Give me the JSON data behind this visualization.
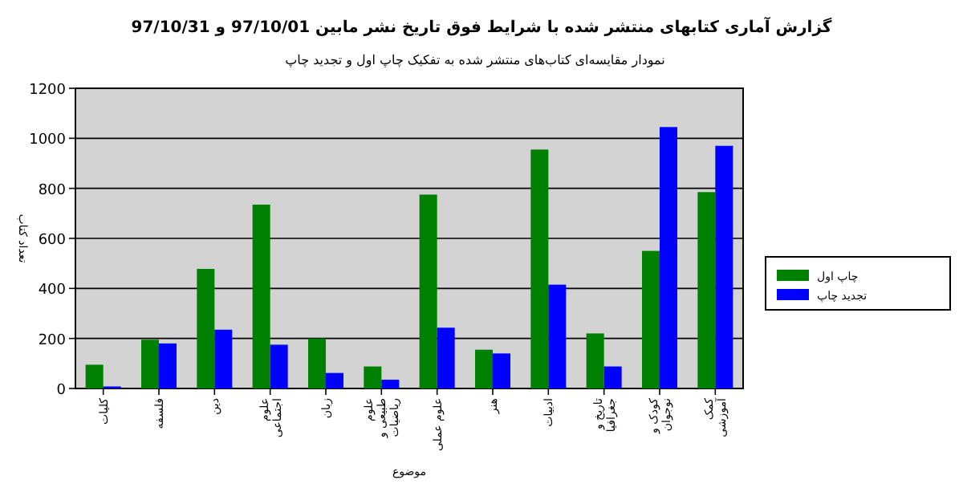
{
  "chart_data": {
    "type": "bar",
    "title": "گزارش آماری کتابهای منتشر شده با شرایط فوق تاریخ نشر مابین 97/10/01 و 97/10/31",
    "subtitle": "نمودار مقایسه‌ای کتاب‌های منتشر شده به تفکیک چاپ اول و تجدید چاپ",
    "xlabel": "موضوع",
    "ylabel": "تعداد کتاب",
    "categories": [
      "کلیات",
      "فلسفه",
      "دین",
      "علوم اجتماعی",
      "زبان",
      "علوم طبیعی و ریاضیات",
      "علوم عملی",
      "هنر",
      "ادبیات",
      "تاریخ و جغرافیا",
      "کودک و نوجوان",
      "کمک آموزشی"
    ],
    "series": [
      {
        "name": "چاپ اول",
        "color": "#008000",
        "values": [
          95,
          195,
          478,
          735,
          200,
          88,
          775,
          155,
          955,
          220,
          550,
          785
        ]
      },
      {
        "name": "تجدید چاپ",
        "color": "#0000ff",
        "values": [
          8,
          180,
          235,
          175,
          62,
          35,
          243,
          140,
          415,
          88,
          1045,
          970
        ]
      }
    ],
    "ylim": [
      0,
      1200
    ],
    "yticks": [
      0,
      200,
      400,
      600,
      800,
      1000,
      1200
    ],
    "grid": "y",
    "legend": "right"
  }
}
